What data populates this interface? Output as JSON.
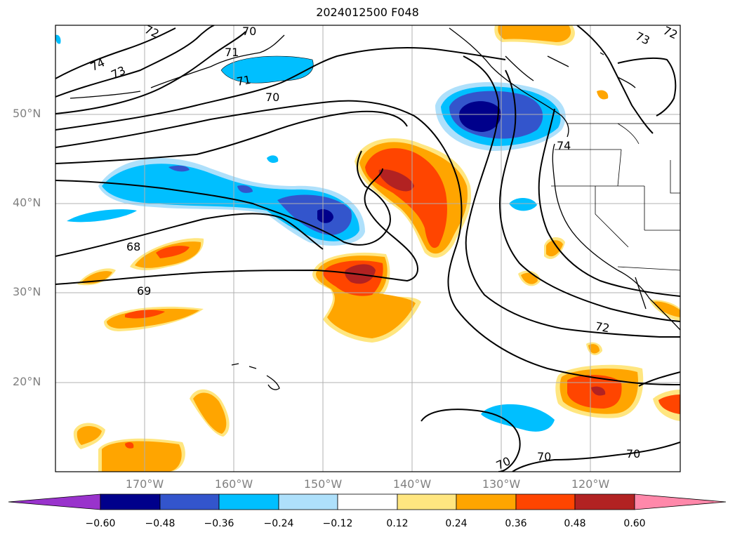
{
  "title": "2024012500 F048",
  "lat_labels": [
    "50°N",
    "40°N",
    "30°N",
    "20°N"
  ],
  "lon_labels": [
    "170°W",
    "160°W",
    "150°W",
    "140°W",
    "130°W",
    "120°W"
  ],
  "contour_labels": [
    "74",
    "73",
    "72",
    "71",
    "70",
    "71",
    "70",
    "68",
    "69",
    "72",
    "73",
    "72",
    "70",
    "70",
    "70",
    "74"
  ],
  "colorbar": {
    "ticks": [
      "−0.60",
      "−0.48",
      "−0.36",
      "−0.24",
      "−0.12",
      "0.12",
      "0.24",
      "0.36",
      "0.48",
      "0.60"
    ],
    "colors": [
      "#9933cc",
      "#00008b",
      "#3355cc",
      "#00bfff",
      "#aee0fb",
      "#ffffff",
      "#ffe680",
      "#ffa500",
      "#ff4500",
      "#b22222",
      "#ff88aa"
    ]
  }
}
